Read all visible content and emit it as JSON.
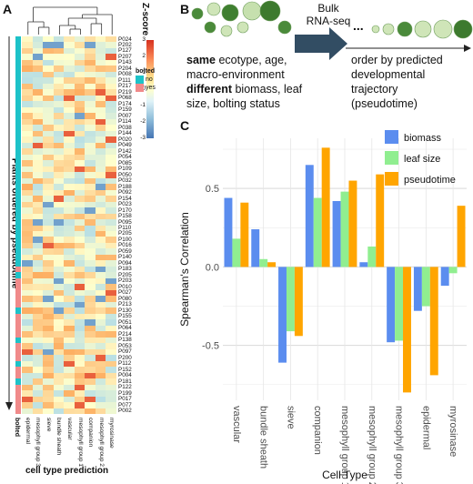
{
  "panel_a": {
    "letter": "A",
    "zscore_title": "Z-score",
    "colorbar_ticks": [
      "3",
      "2",
      "1",
      "0",
      "-1",
      "-2",
      "-3"
    ],
    "bolted_title": "bolted",
    "bolted_legend": [
      {
        "label": "no",
        "color": "#1dc2c8"
      },
      {
        "label": "yes",
        "color": "#f08a8a"
      }
    ],
    "y_axis_label": "Plants ordered by pseudotime",
    "bolted_strip_label": "bolted",
    "x_axis_label": "cell type prediction",
    "columns": [
      "epidermal",
      "mesophyll group 3",
      "sieve",
      "bundle sheath",
      "vascular",
      "mesophyll group 1",
      "companion",
      "mesophyll group 2",
      "myrosinase"
    ],
    "rows": [
      "P024",
      "P202",
      "P127",
      "P207",
      "P143",
      "P204",
      "P008",
      "P111",
      "P217",
      "P219",
      "P068",
      "P174",
      "P159",
      "P007",
      "P114",
      "P038",
      "P144",
      "P020",
      "P049",
      "P142",
      "P054",
      "P085",
      "P109",
      "P050",
      "P032",
      "P188",
      "P092",
      "P154",
      "P023",
      "P170",
      "P158",
      "P095",
      "P110",
      "P205",
      "P100",
      "P016",
      "P059",
      "P140",
      "P094",
      "P183",
      "P205",
      "P203",
      "P010",
      "P027",
      "P080",
      "P213",
      "P130",
      "P155",
      "P051",
      "P064",
      "P214",
      "P138",
      "P053",
      "P097",
      "P200",
      "P112",
      "P152",
      "P004",
      "P181",
      "P122",
      "P199",
      "P017",
      "P077",
      "P002"
    ],
    "bolted": [
      "no",
      "no",
      "no",
      "no",
      "no",
      "no",
      "no",
      "no",
      "no",
      "no",
      "no",
      "no",
      "no",
      "no",
      "no",
      "no",
      "no",
      "no",
      "no",
      "no",
      "no",
      "no",
      "no",
      "no",
      "no",
      "no",
      "no",
      "no",
      "no",
      "no",
      "no",
      "no",
      "no",
      "no",
      "no",
      "no",
      "no",
      "no",
      "no",
      "yes",
      "no",
      "yes",
      "yes",
      "yes",
      "yes",
      "yes",
      "no",
      "yes",
      "yes",
      "yes",
      "yes",
      "no",
      "yes",
      "yes",
      "yes",
      "no",
      "yes",
      "yes",
      "no",
      "yes",
      "yes",
      "yes",
      "yes",
      "yes"
    ],
    "colors": {
      "high": "#d7301f",
      "mid": "#ffffcc",
      "low": "#4575b4",
      "no": "#1dc2c8",
      "yes": "#f08a8a"
    }
  },
  "panel_b": {
    "letter": "B",
    "arrow_label": "Bulk\nRNA-seq",
    "ellipsis": "...",
    "text_bold_1": "same",
    "text_line_1": " ecotype, age,",
    "text_line_2": "macro-environment",
    "text_bold_2": "different",
    "text_line_3": " biomass, leaf",
    "text_line_4": "size, bolting status",
    "order_line_1": "order by predicted",
    "order_line_2": "developmental",
    "order_line_3": "trajectory",
    "order_line_4": "(pseudotime)"
  },
  "panel_c": {
    "letter": "C"
  },
  "chart_data": {
    "type": "bar",
    "categories": [
      "vascular",
      "bundle sheath",
      "sieve",
      "companion",
      "mesophyll group 1",
      "mesophyll group 2",
      "mesophyll group 3",
      "epidermal",
      "myrosinase"
    ],
    "series": [
      {
        "name": "biomass",
        "color": "#5b8def",
        "values": [
          0.44,
          0.24,
          -0.61,
          0.65,
          0.42,
          0.03,
          -0.48,
          -0.28,
          -0.12
        ]
      },
      {
        "name": "leaf size",
        "color": "#90ee90",
        "values": [
          0.18,
          0.05,
          -0.41,
          0.44,
          0.48,
          0.13,
          -0.47,
          -0.25,
          -0.04
        ]
      },
      {
        "name": "pseudotime",
        "color": "#ffa500",
        "values": [
          0.41,
          0.03,
          -0.44,
          0.76,
          0.55,
          0.59,
          -0.8,
          -0.69,
          0.39
        ]
      }
    ],
    "xlabel": "Cell Type",
    "ylabel": "Spearman's Correlation",
    "ylim": [
      -0.85,
      0.82
    ],
    "yticks": [
      "0.5",
      "0.0",
      "-0.5"
    ],
    "ytick_values": [
      0.5,
      0.0,
      -0.5
    ],
    "grid": true,
    "legend": "top-right"
  }
}
